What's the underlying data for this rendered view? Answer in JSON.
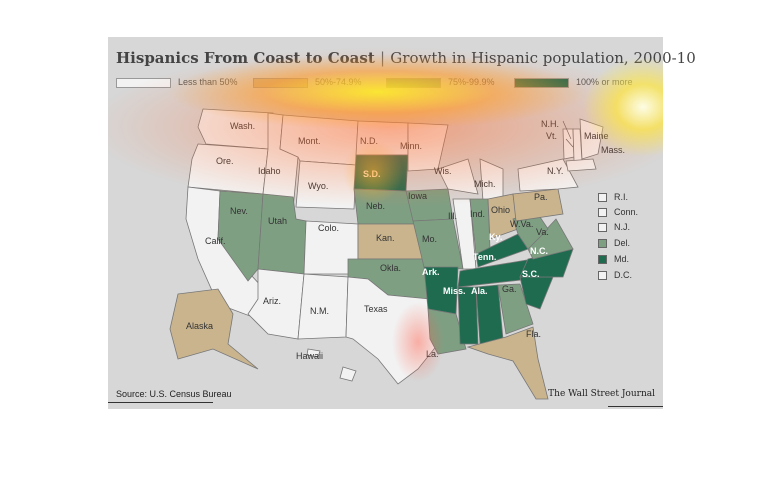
{
  "title": {
    "main": "Hispanics From Coast to Coast",
    "separator": "|",
    "subtitle": "Growth in Hispanic population, 2000-10"
  },
  "legend": [
    {
      "label": "Less than 50%",
      "color": "#f2f2f2"
    },
    {
      "label": "50%-74.9%",
      "color": "#c9b48e"
    },
    {
      "label": "75%-99.9%",
      "color": "#7f9f83"
    },
    {
      "label": "100% or more",
      "color": "#1e6b50"
    }
  ],
  "colors": {
    "lt50": "#f2f2f2",
    "c50_74": "#c9b48e",
    "c75_99": "#7f9f83",
    "c100": "#1e6b50",
    "outline": "#777777"
  },
  "states": {
    "wash": "Wash.",
    "ore": "Ore.",
    "calif": "Calif.",
    "idaho": "Idaho",
    "nev": "Nev.",
    "mont": "Mont.",
    "wyo": "Wyo.",
    "utah": "Utah",
    "ariz": "Ariz.",
    "colo": "Colo.",
    "nm": "N.M.",
    "nd": "N.D.",
    "sd": "S.D.",
    "neb": "Neb.",
    "kan": "Kan.",
    "okla": "Okla.",
    "texas": "Texas",
    "minn": "Minn.",
    "iowa": "Iowa",
    "mo": "Mo.",
    "ark": "Ark.",
    "la": "La.",
    "wis": "Wis.",
    "ill": "Ill.",
    "mich": "Mich.",
    "ind": "Ind.",
    "ohio": "Ohio",
    "ky": "Ky.",
    "tenn": "Tenn.",
    "miss": "Miss.",
    "ala": "Ala.",
    "ga": "Ga.",
    "fla": "Fla.",
    "sc": "S.C.",
    "nc": "N.C.",
    "va": "Va.",
    "wva": "W.Va.",
    "pa": "Pa.",
    "ny": "N.Y.",
    "vt": "Vt.",
    "nh": "N.H.",
    "maine": "Maine",
    "mass": "Mass.",
    "alaska": "Alaska",
    "hawaii": "Hawaii"
  },
  "small_states": [
    {
      "label": "R.I.",
      "color": "#f2f2f2"
    },
    {
      "label": "Conn.",
      "color": "#f2f2f2"
    },
    {
      "label": "N.J.",
      "color": "#f2f2f2"
    },
    {
      "label": "Del.",
      "color": "#7f9f83"
    },
    {
      "label": "Md.",
      "color": "#1e6b50"
    },
    {
      "label": "D.C.",
      "color": "#f2f2f2"
    }
  ],
  "source": "Source: U.S. Census Bureau",
  "publisher": "The Wall Street Journal"
}
